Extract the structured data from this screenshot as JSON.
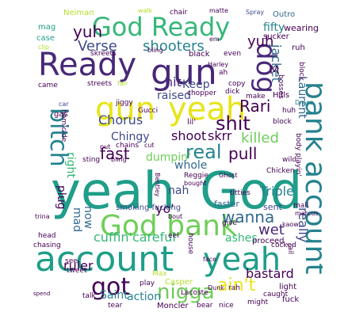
{
  "words": {
    "yeah_big": "yeah",
    "god_big": "God",
    "account_big": "account",
    "yeah_2": "yeah",
    "ready_1": "Ready",
    "gun_1": "gun",
    "gun_2": "gun",
    "yeah_3": "yeah",
    "god_bank": "God bank",
    "bank_account": "bank account",
    "god_ready": "God Ready",
    "dog": "dog",
    "bitch": "bitch",
    "got": "got",
    "nigga": "nigga",
    "aint": "ain't",
    "shooters": "shooters",
    "shit": "shit",
    "verse": "Verse",
    "yuh_1": "yuh",
    "yuh_2": "yuh",
    "chorus": "Chorus",
    "real": "real",
    "fast": "fast",
    "killed": "killed",
    "pull": "pull",
    "wanna": "wanna",
    "rari": "Rari",
    "skrr": "skrr",
    "shoot": "shoot",
    "hit": "hit",
    "keep": "Keep",
    "raised": "raised",
    "jacket": "jacket",
    "laurent": "Laurent",
    "fifty": "fifty",
    "m": "M",
    "chingy": "Chingy",
    "dumpin": "dumpin'",
    "whole": "whole",
    "triple": "Triple",
    "right": "right",
    "nah": "nah",
    "yo": "yo'",
    "cuffin_careful": "cuffin'careful",
    "wet": "wet",
    "really": "really",
    "ashes": "ashes",
    "ruler": "ruler",
    "bastard": "bastard",
    "saint": "Saint",
    "action": "action",
    "now": "now",
    "mad": "mad",
    "plug": "plug",
    "smoking_fucking": "smoking fucking",
    "faster": "faster",
    "sent": "sent",
    "neiman": "Neiman",
    "walk": "walk",
    "chair": "chair",
    "matte": "matte",
    "spray": "Spray",
    "outro": "Outro",
    "mag": "mag",
    "case": "case",
    "clip": "clip",
    "em": "em",
    "wearing": "wearing",
    "sucker": "sucker",
    "ruh": "ruh",
    "skreets": "skreets",
    "bling_1": "bling",
    "black": "black",
    "even": "even",
    "harley": "Harley",
    "block_1": "block",
    "came": "came",
    "streets": "streets",
    "fair": "fair",
    "copy": "copy",
    "dick": "dick",
    "bosses": "bosses",
    "ah": "ah",
    "make": "make",
    "hills": "Hills",
    "car": "car",
    "gas": "gas",
    "jiggy": "jiggy",
    "chopper": "chopper",
    "gucci": "Gucci",
    "huh": "huh",
    "lil": "lil'",
    "block_2": "block",
    "homicide": "homicide",
    "chains": "chains",
    "put": "put",
    "sting": "sting",
    "bling_2": "bling",
    "cut": "cut",
    "wild": "wild",
    "chicken": "Chicken",
    "reggie": "Reggie",
    "ghost": "Ghost",
    "bought": "bought",
    "titties": "titties",
    "mall": "mall",
    "bentley": "Bentley",
    "bout": "bout",
    "body_playin": "body playin'",
    "marcus": "marcus",
    "trina": "trina",
    "head": "head",
    "chasing": "chasing",
    "give": "give",
    "eel": "eel",
    "proceed": "proceed",
    "cocked": "cocked",
    "kaow": "kaow",
    "house": "house",
    "jail": "jail",
    "see": "see",
    "tweet": "tweet",
    "face": "face",
    "rah": "rah",
    "light": "light",
    "spend": "spend",
    "play": "play",
    "lacoste": "Lacoste",
    "dunk": "Dunk",
    "caught": "caught",
    "fuck": "fuck",
    "talk": "talk",
    "tear": "tear",
    "moncler": "Moncler",
    "bear": "bear",
    "nice": "nice",
    "might": "might",
    "max": "Max",
    "casper": "Casper",
    "draco": "Draco"
  }
}
